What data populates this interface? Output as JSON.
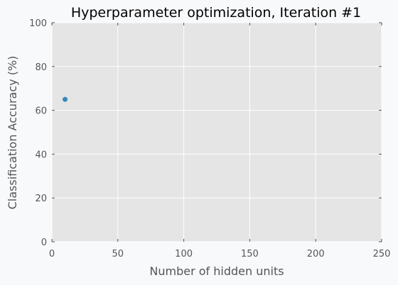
{
  "chart_data": {
    "type": "scatter",
    "title": "Hyperparameter optimization, Iteration #1",
    "xlabel": "Number of hidden units",
    "ylabel": "Classification Accuracy (%)",
    "xlim": [
      0,
      250
    ],
    "ylim": [
      0,
      100
    ],
    "xticks": [
      0,
      50,
      100,
      150,
      200,
      250
    ],
    "yticks": [
      0,
      20,
      40,
      60,
      80,
      100
    ],
    "grid": true,
    "series": [
      {
        "points": [
          {
            "x": 10,
            "y": 65
          }
        ],
        "color": "#348abd"
      }
    ]
  },
  "style": {
    "plot_bg": "#e5e5e5",
    "grid_color": "#ffffff",
    "tick_color": "#555555"
  }
}
